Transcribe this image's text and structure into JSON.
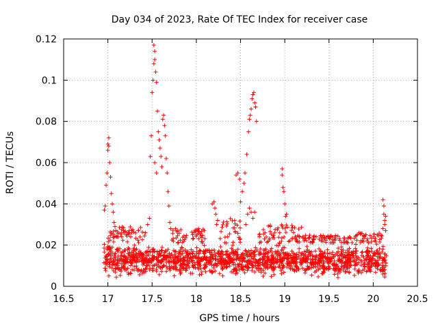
{
  "chart_data": {
    "type": "scatter",
    "title": "Day 034 of 2023, Rate Of TEC Index for receiver case",
    "xlabel": "GPS time / hours",
    "ylabel": "ROTI / TECUs",
    "xlim": [
      16.5,
      20.5
    ],
    "ylim": [
      0,
      0.12
    ],
    "grid": true,
    "marker": "+",
    "marker_color": "#ff0000",
    "x_ticks": [
      {
        "value": 16.5,
        "label": "16.5"
      },
      {
        "value": 17,
        "label": "17"
      },
      {
        "value": 17.5,
        "label": "17.5"
      },
      {
        "value": 18,
        "label": "18"
      },
      {
        "value": 18.5,
        "label": "18.5"
      },
      {
        "value": 19,
        "label": "19"
      },
      {
        "value": 19.5,
        "label": "19.5"
      },
      {
        "value": 20,
        "label": "20"
      },
      {
        "value": 20.5,
        "label": "20.5"
      }
    ],
    "y_ticks": [
      {
        "value": 0,
        "label": "0"
      },
      {
        "value": 0.02,
        "label": "0.02"
      },
      {
        "value": 0.04,
        "label": "0.04"
      },
      {
        "value": 0.06,
        "label": "0.06"
      },
      {
        "value": 0.08,
        "label": "0.08"
      },
      {
        "value": 0.1,
        "label": "0.1"
      },
      {
        "value": 0.12,
        "label": "0.12"
      }
    ],
    "data_range_x": [
      16.95,
      20.15
    ],
    "baseline_envelope": {
      "low": 0.004,
      "high": 0.021
    },
    "features": [
      {
        "name": "peak-17.0",
        "x": [
          16.96,
          17.1
        ],
        "points": [
          [
            16.97,
            0.039
          ],
          [
            16.98,
            0.049
          ],
          [
            16.99,
            0.055
          ],
          [
            17.0,
            0.066
          ],
          [
            17.0,
            0.069
          ],
          [
            17.01,
            0.072
          ],
          [
            17.01,
            0.068
          ],
          [
            17.02,
            0.06
          ],
          [
            17.03,
            0.053
          ],
          [
            17.04,
            0.045
          ],
          [
            17.05,
            0.04
          ],
          [
            17.06,
            0.036
          ],
          [
            17.07,
            0.031
          ],
          [
            17.08,
            0.029
          ],
          [
            17.09,
            0.027
          ],
          [
            16.96,
            0.037
          ]
        ]
      },
      {
        "name": "peak-17.55",
        "x": [
          17.45,
          17.75
        ],
        "points": [
          [
            17.45,
            0.03
          ],
          [
            17.47,
            0.033
          ],
          [
            17.48,
            0.063
          ],
          [
            17.49,
            0.073
          ],
          [
            17.5,
            0.094
          ],
          [
            17.51,
            0.1
          ],
          [
            17.52,
            0.108
          ],
          [
            17.52,
            0.117
          ],
          [
            17.53,
            0.114
          ],
          [
            17.53,
            0.11
          ],
          [
            17.54,
            0.104
          ],
          [
            17.55,
            0.099
          ],
          [
            17.56,
            0.085
          ],
          [
            17.57,
            0.075
          ],
          [
            17.58,
            0.071
          ],
          [
            17.59,
            0.067
          ],
          [
            17.6,
            0.063
          ],
          [
            17.61,
            0.058
          ],
          [
            17.62,
            0.081
          ],
          [
            17.63,
            0.083
          ],
          [
            17.64,
            0.078
          ],
          [
            17.65,
            0.073
          ],
          [
            17.66,
            0.062
          ],
          [
            17.67,
            0.055
          ],
          [
            17.68,
            0.046
          ],
          [
            17.69,
            0.039
          ],
          [
            17.7,
            0.031
          ],
          [
            17.71,
            0.028
          ],
          [
            17.53,
            0.06
          ],
          [
            17.55,
            0.055
          ]
        ]
      },
      {
        "name": "mid-18.2",
        "x": [
          18.15,
          18.25
        ],
        "points": [
          [
            18.18,
            0.04
          ],
          [
            18.2,
            0.041
          ],
          [
            18.21,
            0.038
          ],
          [
            18.22,
            0.035
          ],
          [
            18.23,
            0.03
          ],
          [
            18.24,
            0.032
          ]
        ]
      },
      {
        "name": "peak-18.6",
        "x": [
          18.45,
          18.72
        ],
        "points": [
          [
            18.45,
            0.054
          ],
          [
            18.47,
            0.055
          ],
          [
            18.49,
            0.052
          ],
          [
            18.5,
            0.041
          ],
          [
            18.52,
            0.046
          ],
          [
            18.54,
            0.05
          ],
          [
            18.55,
            0.055
          ],
          [
            18.57,
            0.064
          ],
          [
            18.59,
            0.075
          ],
          [
            18.6,
            0.081
          ],
          [
            18.61,
            0.083
          ],
          [
            18.62,
            0.086
          ],
          [
            18.63,
            0.091
          ],
          [
            18.64,
            0.093
          ],
          [
            18.65,
            0.094
          ],
          [
            18.66,
            0.089
          ],
          [
            18.67,
            0.087
          ],
          [
            18.68,
            0.08
          ],
          [
            18.56,
            0.03
          ],
          [
            18.58,
            0.035
          ],
          [
            18.6,
            0.038
          ],
          [
            18.62,
            0.036
          ],
          [
            18.64,
            0.033
          ],
          [
            18.66,
            0.036
          ]
        ]
      },
      {
        "name": "spike-18.97",
        "x": [
          18.95,
          19.03
        ],
        "points": [
          [
            18.97,
            0.057
          ],
          [
            18.97,
            0.054
          ],
          [
            18.98,
            0.048
          ],
          [
            18.99,
            0.046
          ],
          [
            19.0,
            0.04
          ],
          [
            19.01,
            0.034
          ],
          [
            19.02,
            0.035
          ]
        ]
      },
      {
        "name": "end-20.1",
        "x": [
          20.1,
          20.15
        ],
        "points": [
          [
            20.11,
            0.042
          ],
          [
            20.12,
            0.039
          ],
          [
            20.12,
            0.035
          ],
          [
            20.13,
            0.032
          ],
          [
            20.14,
            0.034
          ],
          [
            20.13,
            0.03
          ],
          [
            20.14,
            0.027
          ],
          [
            20.11,
            0.028
          ]
        ]
      }
    ],
    "elevated_bands": [
      {
        "x": [
          17.0,
          17.45
        ],
        "max": 0.029
      },
      {
        "x": [
          17.7,
          18.1
        ],
        "max": 0.028
      },
      {
        "x": [
          18.25,
          18.5
        ],
        "max": 0.033
      },
      {
        "x": [
          18.7,
          19.2
        ],
        "max": 0.03
      },
      {
        "x": [
          19.2,
          19.5
        ],
        "max": 0.025
      },
      {
        "x": [
          19.5,
          19.8
        ],
        "max": 0.025
      },
      {
        "x": [
          19.8,
          20.1
        ],
        "max": 0.026
      }
    ]
  }
}
